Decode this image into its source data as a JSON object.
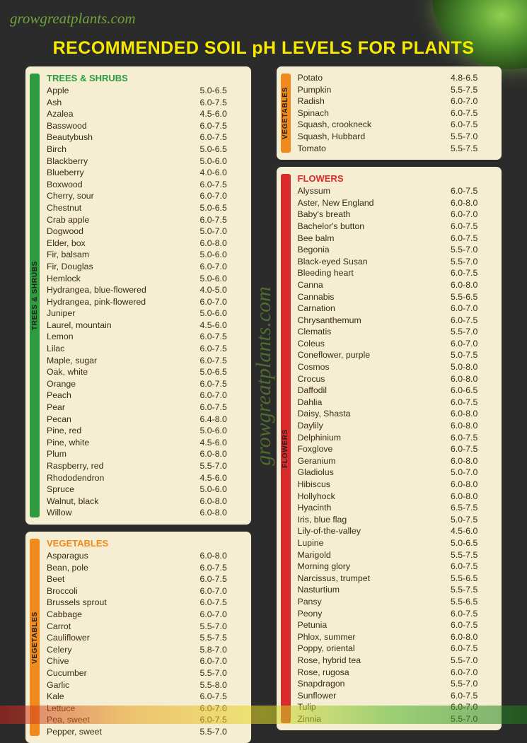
{
  "logo_text": "growgreatplants.com",
  "watermark": "growgreatplants.com",
  "title": "RECOMMENDED SOIL pH LEVELS FOR PLANTS",
  "colors": {
    "background": "#2b2b2b",
    "panel": "#f5eed2",
    "title": "#f7ea00",
    "logo": "#6fa33a",
    "text": "#3a2a1a",
    "trees_tab": "#2e9b3f",
    "trees_header": "#2e9b3f",
    "veg_tab": "#f08a1d",
    "veg_header": "#f08a1d",
    "flowers_tab": "#d92b2b",
    "flowers_header": "#d92b2b"
  },
  "sections": {
    "trees": {
      "label": "TREES & SHRUBS",
      "items": [
        [
          "Apple",
          "5.0-6.5"
        ],
        [
          "Ash",
          "6.0-7.5"
        ],
        [
          "Azalea",
          "4.5-6.0"
        ],
        [
          "Basswood",
          "6.0-7.5"
        ],
        [
          "Beautybush",
          "6.0-7.5"
        ],
        [
          "Birch",
          "5.0-6.5"
        ],
        [
          "Blackberry",
          "5.0-6.0"
        ],
        [
          "Blueberry",
          "4.0-6.0"
        ],
        [
          "Boxwood",
          "6.0-7.5"
        ],
        [
          "Cherry, sour",
          "6.0-7.0"
        ],
        [
          "Chestnut",
          "5.0-6.5"
        ],
        [
          "Crab apple",
          "6.0-7.5"
        ],
        [
          "Dogwood",
          "5.0-7.0"
        ],
        [
          "Elder, box",
          "6.0-8.0"
        ],
        [
          "Fir, balsam",
          "5.0-6.0"
        ],
        [
          "Fir, Douglas",
          "6.0-7.0"
        ],
        [
          "Hemlock",
          "5.0-6.0"
        ],
        [
          "Hydrangea, blue-flowered",
          "4.0-5.0"
        ],
        [
          "Hydrangea, pink-flowered",
          "6.0-7.0"
        ],
        [
          "Juniper",
          "5.0-6.0"
        ],
        [
          "Laurel, mountain",
          "4.5-6.0"
        ],
        [
          "Lemon",
          "6.0-7.5"
        ],
        [
          "Lilac",
          "6.0-7.5"
        ],
        [
          "Maple, sugar",
          "6.0-7.5"
        ],
        [
          "Oak, white",
          "5.0-6.5"
        ],
        [
          "Orange",
          "6.0-7.5"
        ],
        [
          "Peach",
          "6.0-7.0"
        ],
        [
          "Pear",
          "6.0-7.5"
        ],
        [
          "Pecan",
          "6.4-8.0"
        ],
        [
          "Pine, red",
          "5.0-6.0"
        ],
        [
          "Pine, white",
          "4.5-6.0"
        ],
        [
          "Plum",
          "6.0-8.0"
        ],
        [
          "Raspberry, red",
          "5.5-7.0"
        ],
        [
          "Rhododendron",
          "4.5-6.0"
        ],
        [
          "Spruce",
          "5.0-6.0"
        ],
        [
          "Walnut, black",
          "6.0-8.0"
        ],
        [
          "Willow",
          "6.0-8.0"
        ]
      ]
    },
    "veg1": {
      "label": "VEGETABLES",
      "items": [
        [
          "Asparagus",
          "6.0-8.0"
        ],
        [
          "Bean, pole",
          "6.0-7.5"
        ],
        [
          "Beet",
          "6.0-7.5"
        ],
        [
          "Broccoli",
          "6.0-7.0"
        ],
        [
          "Brussels sprout",
          "6.0-7.5"
        ],
        [
          "Cabbage",
          "6.0-7.0"
        ],
        [
          "Carrot",
          "5.5-7.0"
        ],
        [
          "Cauliflower",
          "5.5-7.5"
        ],
        [
          "Celery",
          "5.8-7.0"
        ],
        [
          "Chive",
          "6.0-7.0"
        ],
        [
          "Cucumber",
          "5.5-7.0"
        ],
        [
          "Garlic",
          "5.5-8.0"
        ],
        [
          "Kale",
          "6.0-7.5"
        ],
        [
          "Lettuce",
          "6.0-7.0"
        ],
        [
          "Pea, sweet",
          "6.0-7.5"
        ],
        [
          "Pepper, sweet",
          "5.5-7.0"
        ]
      ]
    },
    "veg2": {
      "label": "VEGETABLES",
      "items": [
        [
          "Potato",
          "4.8-6.5"
        ],
        [
          "Pumpkin",
          "5.5-7.5"
        ],
        [
          "Radish",
          "6.0-7.0"
        ],
        [
          "Spinach",
          "6.0-7.5"
        ],
        [
          "Squash, crookneck",
          "6.0-7.5"
        ],
        [
          "Squash, Hubbard",
          "5.5-7.0"
        ],
        [
          "Tomato",
          "5.5-7.5"
        ]
      ]
    },
    "flowers": {
      "label": "FLOWERS",
      "items": [
        [
          "Alyssum",
          "6.0-7.5"
        ],
        [
          "Aster, New England",
          "6.0-8.0"
        ],
        [
          "Baby's breath",
          "6.0-7.0"
        ],
        [
          "Bachelor's button",
          "6.0-7.5"
        ],
        [
          "Bee balm",
          "6.0-7.5"
        ],
        [
          "Begonia",
          "5.5-7.0"
        ],
        [
          "Black-eyed Susan",
          "5.5-7.0"
        ],
        [
          "Bleeding heart",
          "6.0-7.5"
        ],
        [
          "Canna",
          "6.0-8.0"
        ],
        [
          "Cannabis",
          "5.5-6.5"
        ],
        [
          "Carnation",
          "6.0-7.0"
        ],
        [
          "Chrysanthemum",
          "6.0-7.5"
        ],
        [
          "Clematis",
          "5.5-7.0"
        ],
        [
          "Coleus",
          "6.0-7.0"
        ],
        [
          "Coneflower, purple",
          "5.0-7.5"
        ],
        [
          "Cosmos",
          "5.0-8.0"
        ],
        [
          "Crocus",
          "6.0-8.0"
        ],
        [
          "Daffodil",
          "6.0-6.5"
        ],
        [
          "Dahlia",
          "6.0-7.5"
        ],
        [
          "Daisy, Shasta",
          "6.0-8.0"
        ],
        [
          "Daylily",
          "6.0-8.0"
        ],
        [
          "Delphinium",
          "6.0-7.5"
        ],
        [
          "Foxglove",
          "6.0-7.5"
        ],
        [
          "Geranium",
          "6.0-8.0"
        ],
        [
          "Gladiolus",
          "5.0-7.0"
        ],
        [
          "Hibiscus",
          "6.0-8.0"
        ],
        [
          "Hollyhock",
          "6.0-8.0"
        ],
        [
          "Hyacinth",
          "6.5-7.5"
        ],
        [
          "Iris, blue flag",
          "5.0-7.5"
        ],
        [
          "Lily-of-the-valley",
          "4.5-6.0"
        ],
        [
          "Lupine",
          "5.0-6.5"
        ],
        [
          "Marigold",
          "5.5-7.5"
        ],
        [
          "Morning glory",
          "6.0-7.5"
        ],
        [
          "Narcissus, trumpet",
          "5.5-6.5"
        ],
        [
          "Nasturtium",
          "5.5-7.5"
        ],
        [
          "Pansy",
          "5.5-6.5"
        ],
        [
          "Peony",
          "6.0-7.5"
        ],
        [
          "Petunia",
          "6.0-7.5"
        ],
        [
          "Phlox, summer",
          "6.0-8.0"
        ],
        [
          "Poppy, oriental",
          "6.0-7.5"
        ],
        [
          "Rose, hybrid tea",
          "5.5-7.0"
        ],
        [
          "Rose, rugosa",
          "6.0-7.0"
        ],
        [
          "Snapdragon",
          "5.5-7.0"
        ],
        [
          "Sunflower",
          "6.0-7.5"
        ],
        [
          "Tulip",
          "6.0-7.0"
        ],
        [
          "Zinnia",
          "5.5-7.0"
        ]
      ]
    }
  }
}
